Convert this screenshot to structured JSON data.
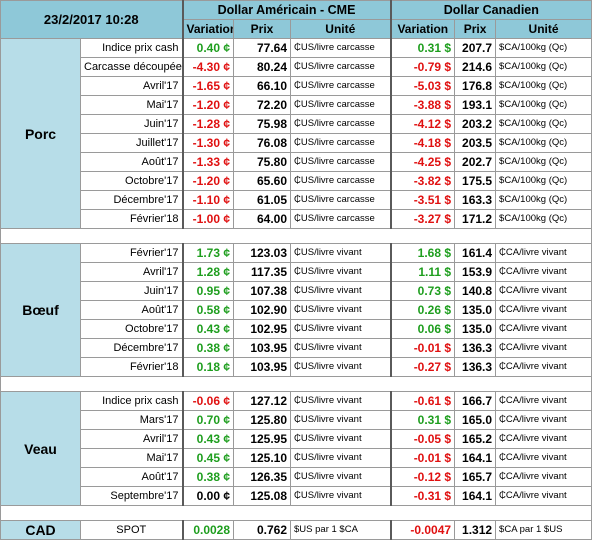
{
  "header": {
    "datetime": "23/2/2017 10:28",
    "usd_title": "Dollar Américain - CME",
    "cad_title": "Dollar Canadien",
    "col_variation": "Variation",
    "col_prix": "Prix",
    "col_unite": "Unité"
  },
  "groups": [
    {
      "name": "Porc",
      "rows": [
        {
          "product": "Indice prix cash",
          "usd_chg": "0.40 ¢",
          "usd_chg_sign": "pos",
          "usd_price": "77.64",
          "usd_unit": "₵US/livre carcasse",
          "cad_chg": "0.31 $",
          "cad_chg_sign": "pos",
          "cad_price": "207.7",
          "cad_unit": "$CA/100kg (Qc)"
        },
        {
          "product": "Carcasse découpée",
          "usd_chg": "-4.30 ¢",
          "usd_chg_sign": "neg",
          "usd_price": "80.24",
          "usd_unit": "₵US/livre carcasse",
          "cad_chg": "-0.79 $",
          "cad_chg_sign": "neg",
          "cad_price": "214.6",
          "cad_unit": "$CA/100kg (Qc)"
        },
        {
          "product": "Avril'17",
          "usd_chg": "-1.65 ¢",
          "usd_chg_sign": "neg",
          "usd_price": "66.10",
          "usd_unit": "₵US/livre carcasse",
          "cad_chg": "-5.03 $",
          "cad_chg_sign": "neg",
          "cad_price": "176.8",
          "cad_unit": "$CA/100kg (Qc)"
        },
        {
          "product": "Mai'17",
          "usd_chg": "-1.20 ¢",
          "usd_chg_sign": "neg",
          "usd_price": "72.20",
          "usd_unit": "₵US/livre carcasse",
          "cad_chg": "-3.88 $",
          "cad_chg_sign": "neg",
          "cad_price": "193.1",
          "cad_unit": "$CA/100kg (Qc)"
        },
        {
          "product": "Juin'17",
          "usd_chg": "-1.28 ¢",
          "usd_chg_sign": "neg",
          "usd_price": "75.98",
          "usd_unit": "₵US/livre carcasse",
          "cad_chg": "-4.12 $",
          "cad_chg_sign": "neg",
          "cad_price": "203.2",
          "cad_unit": "$CA/100kg (Qc)"
        },
        {
          "product": "Juillet'17",
          "usd_chg": "-1.30 ¢",
          "usd_chg_sign": "neg",
          "usd_price": "76.08",
          "usd_unit": "₵US/livre carcasse",
          "cad_chg": "-4.18 $",
          "cad_chg_sign": "neg",
          "cad_price": "203.5",
          "cad_unit": "$CA/100kg (Qc)"
        },
        {
          "product": "Août'17",
          "usd_chg": "-1.33 ¢",
          "usd_chg_sign": "neg",
          "usd_price": "75.80",
          "usd_unit": "₵US/livre carcasse",
          "cad_chg": "-4.25 $",
          "cad_chg_sign": "neg",
          "cad_price": "202.7",
          "cad_unit": "$CA/100kg (Qc)"
        },
        {
          "product": "Octobre'17",
          "usd_chg": "-1.20 ¢",
          "usd_chg_sign": "neg",
          "usd_price": "65.60",
          "usd_unit": "₵US/livre carcasse",
          "cad_chg": "-3.82 $",
          "cad_chg_sign": "neg",
          "cad_price": "175.5",
          "cad_unit": "$CA/100kg (Qc)"
        },
        {
          "product": "Décembre'17",
          "usd_chg": "-1.10 ¢",
          "usd_chg_sign": "neg",
          "usd_price": "61.05",
          "usd_unit": "₵US/livre carcasse",
          "cad_chg": "-3.51 $",
          "cad_chg_sign": "neg",
          "cad_price": "163.3",
          "cad_unit": "$CA/100kg (Qc)"
        },
        {
          "product": "Février'18",
          "usd_chg": "-1.00 ¢",
          "usd_chg_sign": "neg",
          "usd_price": "64.00",
          "usd_unit": "₵US/livre carcasse",
          "cad_chg": "-3.27 $",
          "cad_chg_sign": "neg",
          "cad_price": "171.2",
          "cad_unit": "$CA/100kg (Qc)"
        }
      ]
    },
    {
      "name": "Bœuf",
      "rows": [
        {
          "product": "Février'17",
          "usd_chg": "1.73 ¢",
          "usd_chg_sign": "pos",
          "usd_price": "123.03",
          "usd_unit": "₵US/livre vivant",
          "cad_chg": "1.68 $",
          "cad_chg_sign": "pos",
          "cad_price": "161.4",
          "cad_unit": "₵CA/livre vivant"
        },
        {
          "product": "Avril'17",
          "usd_chg": "1.28 ¢",
          "usd_chg_sign": "pos",
          "usd_price": "117.35",
          "usd_unit": "₵US/livre vivant",
          "cad_chg": "1.11 $",
          "cad_chg_sign": "pos",
          "cad_price": "153.9",
          "cad_unit": "₵CA/livre vivant"
        },
        {
          "product": "Juin'17",
          "usd_chg": "0.95 ¢",
          "usd_chg_sign": "pos",
          "usd_price": "107.38",
          "usd_unit": "₵US/livre vivant",
          "cad_chg": "0.73 $",
          "cad_chg_sign": "pos",
          "cad_price": "140.8",
          "cad_unit": "₵CA/livre vivant"
        },
        {
          "product": "Août'17",
          "usd_chg": "0.58 ¢",
          "usd_chg_sign": "pos",
          "usd_price": "102.90",
          "usd_unit": "₵US/livre vivant",
          "cad_chg": "0.26 $",
          "cad_chg_sign": "pos",
          "cad_price": "135.0",
          "cad_unit": "₵CA/livre vivant"
        },
        {
          "product": "Octobre'17",
          "usd_chg": "0.43 ¢",
          "usd_chg_sign": "pos",
          "usd_price": "102.95",
          "usd_unit": "₵US/livre vivant",
          "cad_chg": "0.06 $",
          "cad_chg_sign": "pos",
          "cad_price": "135.0",
          "cad_unit": "₵CA/livre vivant"
        },
        {
          "product": "Décembre'17",
          "usd_chg": "0.38 ¢",
          "usd_chg_sign": "pos",
          "usd_price": "103.95",
          "usd_unit": "₵US/livre vivant",
          "cad_chg": "-0.01 $",
          "cad_chg_sign": "neg",
          "cad_price": "136.3",
          "cad_unit": "₵CA/livre vivant"
        },
        {
          "product": "Février'18",
          "usd_chg": "0.18 ¢",
          "usd_chg_sign": "pos",
          "usd_price": "103.95",
          "usd_unit": "₵US/livre vivant",
          "cad_chg": "-0.27 $",
          "cad_chg_sign": "neg",
          "cad_price": "136.3",
          "cad_unit": "₵CA/livre vivant"
        }
      ]
    },
    {
      "name": "Veau",
      "rows": [
        {
          "product": "Indice prix cash",
          "usd_chg": "-0.06 ¢",
          "usd_chg_sign": "neg",
          "usd_price": "127.12",
          "usd_unit": "₵US/livre vivant",
          "cad_chg": "-0.61 $",
          "cad_chg_sign": "neg",
          "cad_price": "166.7",
          "cad_unit": "₵CA/livre vivant"
        },
        {
          "product": "Mars'17",
          "usd_chg": "0.70 ¢",
          "usd_chg_sign": "pos",
          "usd_price": "125.80",
          "usd_unit": "₵US/livre vivant",
          "cad_chg": "0.31 $",
          "cad_chg_sign": "pos",
          "cad_price": "165.0",
          "cad_unit": "₵CA/livre vivant"
        },
        {
          "product": "Avril'17",
          "usd_chg": "0.43 ¢",
          "usd_chg_sign": "pos",
          "usd_price": "125.95",
          "usd_unit": "₵US/livre vivant",
          "cad_chg": "-0.05 $",
          "cad_chg_sign": "neg",
          "cad_price": "165.2",
          "cad_unit": "₵CA/livre vivant"
        },
        {
          "product": "Mai'17",
          "usd_chg": "0.45 ¢",
          "usd_chg_sign": "pos",
          "usd_price": "125.10",
          "usd_unit": "₵US/livre vivant",
          "cad_chg": "-0.01 $",
          "cad_chg_sign": "neg",
          "cad_price": "164.1",
          "cad_unit": "₵CA/livre vivant"
        },
        {
          "product": "Août'17",
          "usd_chg": "0.38 ¢",
          "usd_chg_sign": "pos",
          "usd_price": "126.35",
          "usd_unit": "₵US/livre vivant",
          "cad_chg": "-0.12 $",
          "cad_chg_sign": "neg",
          "cad_price": "165.7",
          "cad_unit": "₵CA/livre vivant"
        },
        {
          "product": "Septembre'17",
          "usd_chg": "0.00 ¢",
          "usd_chg_sign": "zero",
          "usd_price": "125.08",
          "usd_unit": "₵US/livre vivant",
          "cad_chg": "-0.31 $",
          "cad_chg_sign": "neg",
          "cad_price": "164.1",
          "cad_unit": "₵CA/livre vivant"
        }
      ]
    }
  ],
  "cad": {
    "name": "CAD",
    "product": "SPOT",
    "usd_chg": "0.0028",
    "usd_chg_sign": "pos",
    "usd_price": "0.762",
    "usd_unit": "$US par 1 $CA",
    "cad_chg": "-0.0047",
    "cad_chg_sign": "neg",
    "cad_price": "1.312",
    "cad_unit": "$CA par 1 $US"
  },
  "colors": {
    "header_bg": "#8ec8d8",
    "group_bg": "#b7dde8",
    "positive": "#1e9e1e",
    "negative": "#e01010"
  }
}
